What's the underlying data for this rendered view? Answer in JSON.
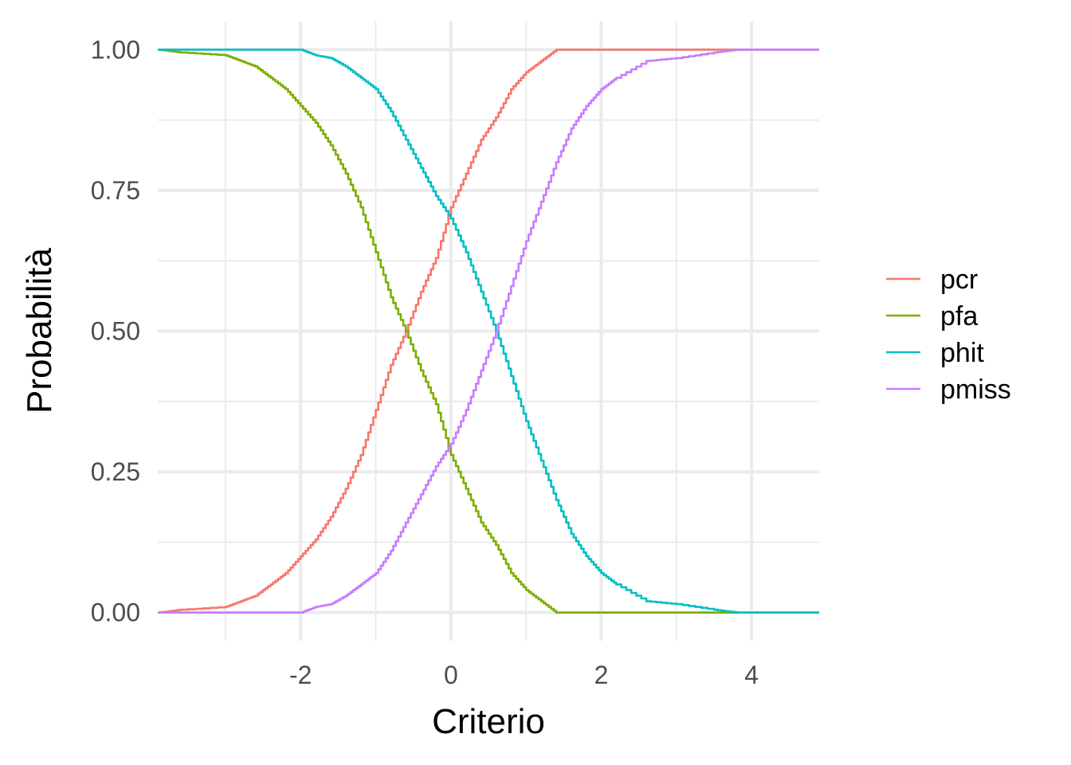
{
  "chart_data": {
    "type": "line",
    "xlabel": "Criterio",
    "ylabel": "Probabilità",
    "xlim": [
      -3.9,
      4.9
    ],
    "ylim": [
      -0.05,
      1.05
    ],
    "x_ticks": [
      -2,
      0,
      2,
      4
    ],
    "x_tick_labels": [
      "-2",
      "0",
      "2",
      "4"
    ],
    "x_minor_ticks": [
      -3,
      -1,
      1,
      3
    ],
    "y_ticks": [
      0,
      0.25,
      0.5,
      0.75,
      1
    ],
    "y_tick_labels": [
      "0.00",
      "0.25",
      "0.50",
      "0.75",
      "1.00"
    ],
    "y_minor_ticks": [
      0.125,
      0.375,
      0.625,
      0.875
    ],
    "grid": true,
    "legend_position": "right",
    "series": [
      {
        "name": "pcr",
        "color": "#F8766D",
        "x": [
          -3.9,
          -3.6,
          -3.0,
          -2.8,
          -2.6,
          -2.4,
          -2.2,
          -2.0,
          -1.8,
          -1.6,
          -1.4,
          -1.2,
          -1.0,
          -0.8,
          -0.6,
          -0.4,
          -0.2,
          0.0,
          0.2,
          0.4,
          0.6,
          0.8,
          1.0,
          1.2,
          1.4,
          1.6,
          2.0,
          3.0,
          4.0,
          4.9
        ],
        "values": [
          0.0,
          0.005,
          0.01,
          0.02,
          0.03,
          0.05,
          0.07,
          0.1,
          0.13,
          0.17,
          0.22,
          0.28,
          0.36,
          0.44,
          0.5,
          0.57,
          0.63,
          0.72,
          0.78,
          0.84,
          0.88,
          0.93,
          0.96,
          0.98,
          1.0,
          1.0,
          1.0,
          1.0,
          1.0,
          1.0
        ]
      },
      {
        "name": "pfa",
        "color": "#7CAE00",
        "x": [
          -3.9,
          -3.6,
          -3.0,
          -2.8,
          -2.6,
          -2.4,
          -2.2,
          -2.0,
          -1.8,
          -1.6,
          -1.4,
          -1.2,
          -1.0,
          -0.8,
          -0.6,
          -0.4,
          -0.2,
          0.0,
          0.2,
          0.4,
          0.6,
          0.8,
          1.0,
          1.2,
          1.4,
          1.6,
          2.0,
          3.0,
          4.0,
          4.9
        ],
        "values": [
          1.0,
          0.995,
          0.99,
          0.98,
          0.97,
          0.95,
          0.93,
          0.9,
          0.87,
          0.83,
          0.78,
          0.72,
          0.64,
          0.56,
          0.5,
          0.43,
          0.37,
          0.28,
          0.22,
          0.16,
          0.12,
          0.07,
          0.04,
          0.02,
          0.0,
          0.0,
          0.0,
          0.0,
          0.0,
          0.0
        ]
      },
      {
        "name": "phit",
        "color": "#00BFC4",
        "x": [
          -3.9,
          -2.0,
          -1.8,
          -1.6,
          -1.4,
          -1.2,
          -1.0,
          -0.8,
          -0.6,
          -0.4,
          -0.2,
          0.0,
          0.2,
          0.4,
          0.6,
          0.8,
          1.0,
          1.2,
          1.4,
          1.6,
          1.8,
          2.0,
          2.2,
          2.6,
          3.0,
          3.5,
          3.8,
          4.9
        ],
        "values": [
          1.0,
          1.0,
          0.99,
          0.985,
          0.97,
          0.95,
          0.93,
          0.89,
          0.84,
          0.79,
          0.74,
          0.7,
          0.64,
          0.57,
          0.5,
          0.42,
          0.34,
          0.27,
          0.2,
          0.14,
          0.1,
          0.07,
          0.05,
          0.02,
          0.015,
          0.005,
          0.0,
          0.0
        ]
      },
      {
        "name": "pmiss",
        "color": "#C77CFF",
        "x": [
          -3.9,
          -2.0,
          -1.8,
          -1.6,
          -1.4,
          -1.2,
          -1.0,
          -0.8,
          -0.6,
          -0.4,
          -0.2,
          0.0,
          0.2,
          0.4,
          0.6,
          0.8,
          1.0,
          1.2,
          1.4,
          1.6,
          1.8,
          2.0,
          2.2,
          2.6,
          3.0,
          3.5,
          3.8,
          4.9
        ],
        "values": [
          0.0,
          0.0,
          0.01,
          0.015,
          0.03,
          0.05,
          0.07,
          0.11,
          0.16,
          0.21,
          0.26,
          0.3,
          0.36,
          0.43,
          0.5,
          0.58,
          0.66,
          0.73,
          0.8,
          0.86,
          0.9,
          0.93,
          0.95,
          0.98,
          0.985,
          0.995,
          1.0,
          1.0
        ]
      }
    ]
  }
}
